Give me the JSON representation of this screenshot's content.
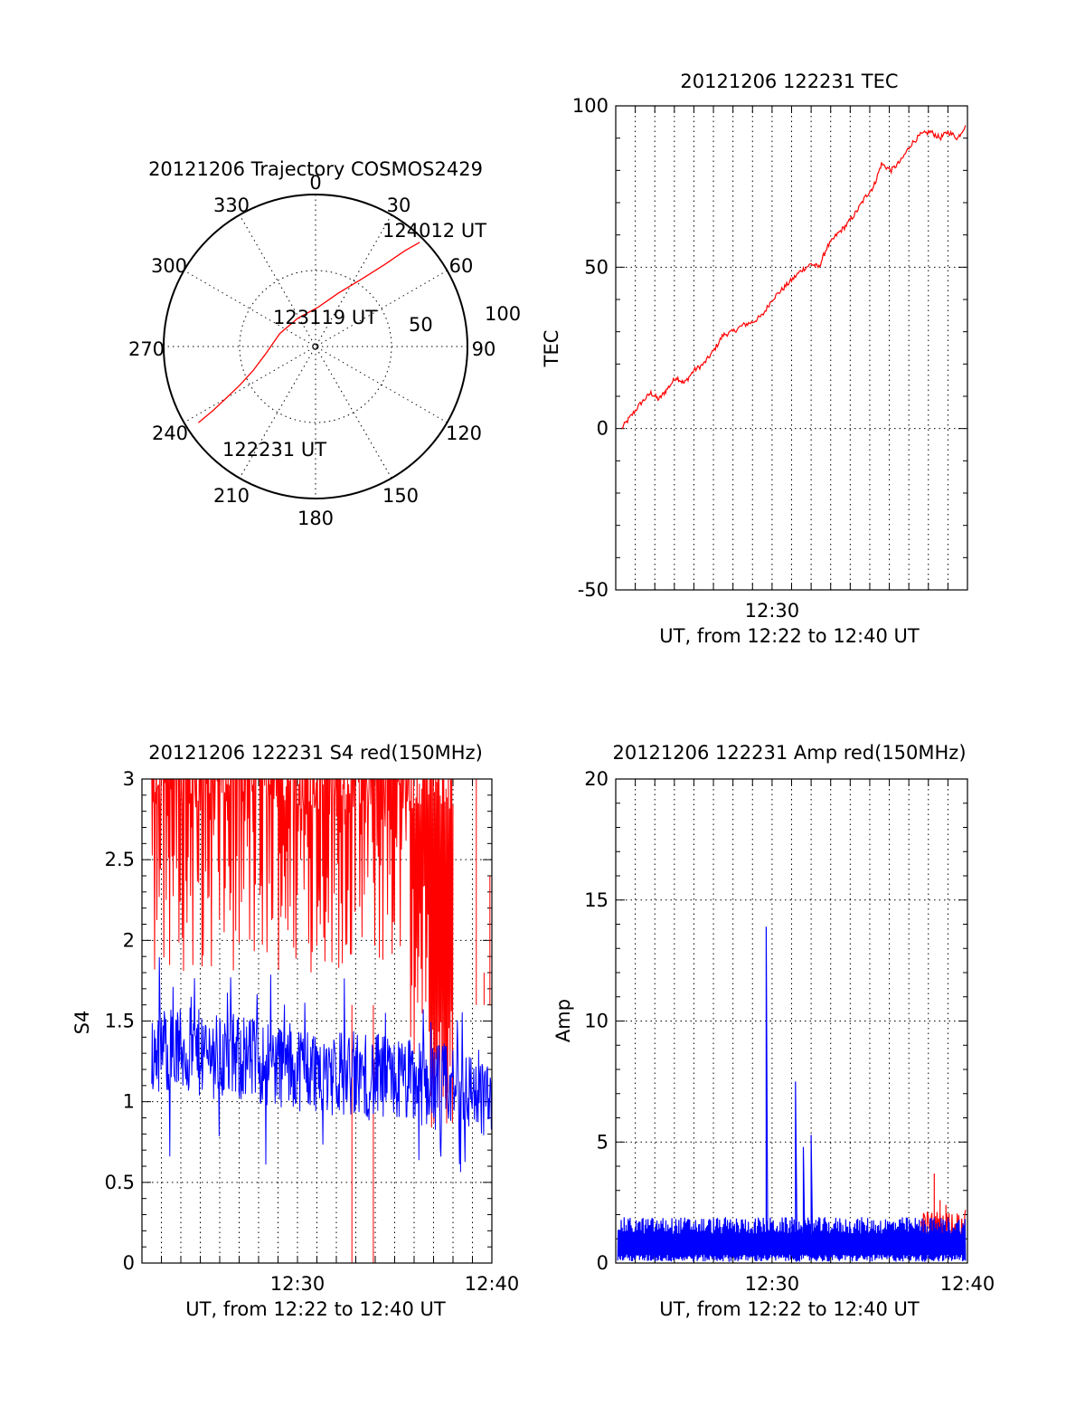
{
  "chart_data": [
    {
      "type": "scatter",
      "id": "trajectory",
      "title": "20121206 Trajectory COSMOS2429",
      "projection": "polar",
      "azimuth_labels": [
        "0",
        "30",
        "60",
        "90",
        "120",
        "150",
        "180",
        "210",
        "240",
        "270",
        "300",
        "330"
      ],
      "radius_labels": [
        "50",
        "100"
      ],
      "rlim": [
        0,
        100
      ],
      "grid": true,
      "track": {
        "color": "#ff0000",
        "points": [
          {
            "az": 237,
            "r": 92
          },
          {
            "az": 238,
            "r": 80
          },
          {
            "az": 240,
            "r": 68
          },
          {
            "az": 243,
            "r": 56
          },
          {
            "az": 249,
            "r": 44
          },
          {
            "az": 262,
            "r": 33
          },
          {
            "az": 290,
            "r": 25
          },
          {
            "az": 328,
            "r": 22
          },
          {
            "az": 4,
            "r": 26
          },
          {
            "az": 23,
            "r": 38
          },
          {
            "az": 34,
            "r": 53
          },
          {
            "az": 40,
            "r": 70
          },
          {
            "az": 43,
            "r": 86
          },
          {
            "az": 45,
            "r": 97
          }
        ]
      },
      "annotations": [
        {
          "text": "122231 UT",
          "az": 232,
          "r": 95
        },
        {
          "text": "123119 UT",
          "az": 1,
          "r": 8
        },
        {
          "text": "124012 UT",
          "az": 48,
          "r": 100
        }
      ]
    },
    {
      "type": "line",
      "id": "tec",
      "title": "20121206 122231 TEC",
      "xlabel": "UT, from 12:22 to 12:40 UT",
      "ylabel": "TEC",
      "xlim": [
        0,
        18
      ],
      "ylim": [
        -50,
        100
      ],
      "yticks": [
        -50,
        0,
        50,
        100
      ],
      "xticks": [
        {
          "x": 8,
          "label": "12:30"
        }
      ],
      "grid": true,
      "series": [
        {
          "color": "#ff0000",
          "x": [
            0.3,
            0.8,
            1.3,
            1.8,
            2.2,
            2.6,
            3.1,
            3.5,
            4.0,
            4.5,
            5.0,
            5.5,
            6.0,
            6.5,
            7.0,
            7.5,
            8.0,
            8.5,
            9.0,
            9.5,
            10.0,
            10.4,
            10.8,
            11.3,
            11.8,
            12.3,
            12.8,
            13.2,
            13.6,
            14.1,
            14.6,
            15.1,
            15.6,
            16.1,
            16.6,
            17.0,
            17.5,
            17.9
          ],
          "y": [
            0,
            4,
            8,
            11,
            9,
            12,
            16,
            14,
            18,
            20,
            24,
            29,
            30,
            32,
            33,
            35,
            40,
            43,
            46,
            49,
            51,
            50,
            56,
            60,
            63,
            67,
            72,
            75,
            82,
            80,
            83,
            88,
            91,
            92,
            90,
            92,
            90,
            94
          ]
        }
      ]
    },
    {
      "type": "line",
      "id": "s4",
      "title": "20121206 122231 S4 red(150MHz)",
      "xlabel": "UT, from 12:22 to 12:40 UT",
      "ylabel": "S4",
      "xlim": [
        0,
        18
      ],
      "ylim": [
        0,
        3
      ],
      "yticks": [
        0,
        0.5,
        1,
        1.5,
        2,
        2.5,
        3
      ],
      "xticks": [
        {
          "x": 8,
          "label": "12:30"
        },
        {
          "x": 18,
          "label": "12:40"
        }
      ],
      "grid": true,
      "series": [
        {
          "color": "#ff0000",
          "base_low": 1.8,
          "base_high": 3.0,
          "x_range": [
            0.5,
            16.0
          ]
        },
        {
          "color": "#0000ff",
          "base_low": 0.8,
          "base_high": 1.5,
          "x_range": [
            0.5,
            18.0
          ]
        }
      ]
    },
    {
      "type": "line",
      "id": "amp",
      "title": "20121206 122231 Amp red(150MHz)",
      "xlabel": "UT, from 12:22 to 12:40 UT",
      "ylabel": "Amp",
      "xlim": [
        0,
        18
      ],
      "ylim": [
        0,
        20
      ],
      "yticks": [
        0,
        5,
        10,
        15,
        20
      ],
      "xticks": [
        {
          "x": 8,
          "label": "12:30"
        },
        {
          "x": 18,
          "label": "12:40"
        }
      ],
      "grid": true,
      "series": [
        {
          "color": "#ff0000",
          "spikes": [
            {
              "x": 16.3,
              "y": 3.7
            },
            {
              "x": 16.6,
              "y": 2.6
            },
            {
              "x": 16.9,
              "y": 2.4
            }
          ]
        },
        {
          "color": "#0000ff",
          "baseline": 1.2,
          "spikes": [
            {
              "x": 7.7,
              "y": 13.9
            },
            {
              "x": 9.2,
              "y": 7.5
            },
            {
              "x": 9.6,
              "y": 4.8
            },
            {
              "x": 10.0,
              "y": 5.3
            }
          ]
        }
      ]
    }
  ]
}
